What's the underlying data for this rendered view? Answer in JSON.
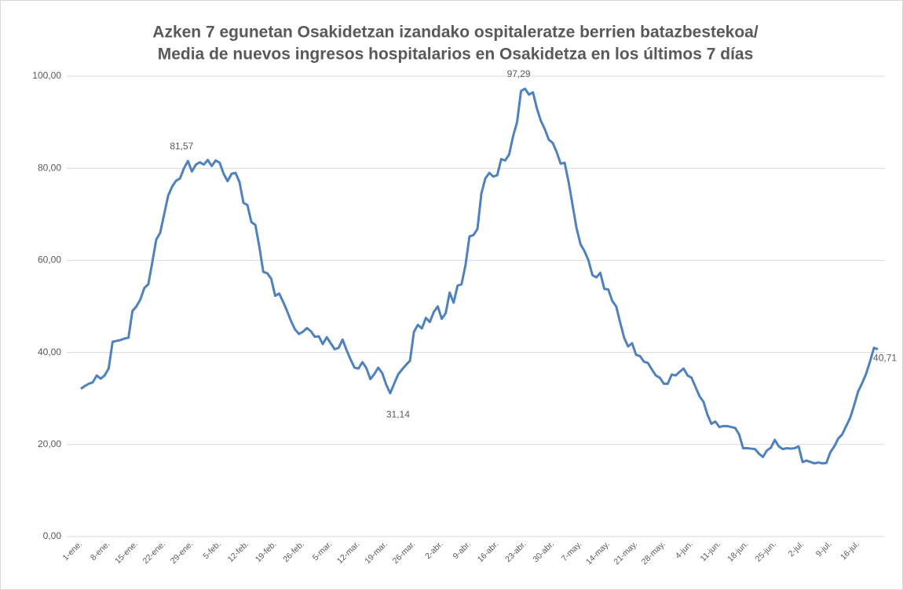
{
  "chart_data": {
    "type": "line",
    "title": [
      "Azken 7 egunetan Osakidetzan izandako ospitaleratze berrien batazbestekoa/",
      "Media de nuevos ingresos hospitalarios en Osakidetza en los últimos 7 días"
    ],
    "categories": [
      "1-ene.",
      null,
      null,
      null,
      null,
      null,
      null,
      "8-ene.",
      null,
      null,
      null,
      null,
      null,
      null,
      "15-ene.",
      null,
      null,
      null,
      null,
      null,
      null,
      "22-ene.",
      null,
      null,
      null,
      null,
      null,
      null,
      "29-ene.",
      null,
      null,
      null,
      null,
      null,
      null,
      "5-feb.",
      null,
      null,
      null,
      null,
      null,
      null,
      "12-feb.",
      null,
      null,
      null,
      null,
      null,
      null,
      "19-feb.",
      null,
      null,
      null,
      null,
      null,
      null,
      "26-feb.",
      null,
      null,
      null,
      null,
      null,
      null,
      "5-mar.",
      null,
      null,
      null,
      null,
      null,
      null,
      "12-mar.",
      null,
      null,
      null,
      null,
      null,
      null,
      "19-mar.",
      null,
      null,
      null,
      null,
      null,
      null,
      "26-mar.",
      null,
      null,
      null,
      null,
      null,
      null,
      "2-abr.",
      null,
      null,
      null,
      null,
      null,
      null,
      "9-abr.",
      null,
      null,
      null,
      null,
      null,
      null,
      "16-abr.",
      null,
      null,
      null,
      null,
      null,
      null,
      "23-abr.",
      null,
      null,
      null,
      null,
      null,
      null,
      "30-abr.",
      null,
      null,
      null,
      null,
      null,
      null,
      "7-may.",
      null,
      null,
      null,
      null,
      null,
      null,
      "14-may.",
      null,
      null,
      null,
      null,
      null,
      null,
      "21-may.",
      null,
      null,
      null,
      null,
      null,
      null,
      "28-may.",
      null,
      null,
      null,
      null,
      null,
      null,
      "4-jun.",
      null,
      null,
      null,
      null,
      null,
      null,
      "11-jun.",
      null,
      null,
      null,
      null,
      null,
      null,
      "18-jun.",
      null,
      null,
      null,
      null,
      null,
      null,
      "25-jun.",
      null,
      null,
      null,
      null,
      null,
      null,
      "2-jul.",
      null,
      null,
      null,
      null,
      null,
      null,
      "9-jul.",
      null,
      null,
      null,
      null,
      null,
      null,
      "16-jul.",
      null,
      null,
      null,
      null,
      null
    ],
    "values": [
      32.1,
      32.7,
      33.2,
      33.5,
      35,
      34.3,
      35,
      36.5,
      42.3,
      42.5,
      42.7,
      43,
      43.2,
      49,
      50,
      51.5,
      54,
      54.8,
      59.5,
      64.5,
      66,
      70,
      74,
      76,
      77.3,
      77.8,
      80,
      81.57,
      79.3,
      80.8,
      81.3,
      80.8,
      81.8,
      80.5,
      81.7,
      81.2,
      78.8,
      77.2,
      78.8,
      79,
      77,
      72.5,
      72,
      68.3,
      67.7,
      63,
      57.5,
      57.2,
      56,
      52.3,
      52.8,
      51,
      49,
      46.8,
      45,
      44,
      44.5,
      45.3,
      44.6,
      43.4,
      43.5,
      41.8,
      43.3,
      42,
      40.7,
      41,
      42.8,
      40.5,
      38.5,
      36.7,
      36.5,
      37.9,
      36.6,
      34.2,
      35.3,
      36.7,
      35.5,
      33,
      31.14,
      33.2,
      35.2,
      36.3,
      37.3,
      38.2,
      44.5,
      46,
      45.2,
      47.5,
      46.6,
      48.8,
      50,
      47.3,
      48.5,
      53,
      50.8,
      54.5,
      54.8,
      59,
      65.2,
      65.5,
      66.8,
      74.5,
      77.8,
      79,
      78.2,
      78.5,
      82,
      81.7,
      83,
      87,
      90,
      96.8,
      97.29,
      96,
      96.5,
      93,
      90.3,
      88.5,
      86.2,
      85.5,
      83.5,
      81,
      81.2,
      77,
      72,
      67,
      63.5,
      62,
      60,
      56.8,
      56.3,
      57.3,
      53.8,
      53.7,
      51.2,
      50,
      46.5,
      43.2,
      41.3,
      42,
      39.5,
      39.2,
      38,
      37.7,
      36.3,
      35,
      34.5,
      33.2,
      33.2,
      35.2,
      35,
      35.8,
      36.5,
      35,
      34.5,
      32.5,
      30.5,
      29.3,
      26.5,
      24.5,
      25,
      23.8,
      24,
      24,
      23.8,
      23.6,
      22.2,
      19.2,
      19.2,
      19.1,
      19,
      18,
      17.3,
      18.7,
      19.3,
      21,
      19.6,
      19,
      19.2,
      19.1,
      19.2,
      19.6,
      16.2,
      16.5,
      16.2,
      15.9,
      16.1,
      15.9,
      16,
      18.3,
      19.6,
      21.3,
      22.2,
      24,
      25.8,
      28.5,
      31.5,
      33.3,
      35.3,
      38,
      41,
      40.71
    ],
    "value_labels": [
      null,
      null,
      null,
      null,
      null,
      null,
      null,
      null,
      null,
      null,
      null,
      null,
      null,
      null,
      null,
      null,
      null,
      null,
      null,
      null,
      null,
      null,
      null,
      null,
      null,
      null,
      null,
      "81,57",
      null,
      null,
      null,
      null,
      null,
      null,
      null,
      null,
      null,
      null,
      null,
      null,
      null,
      null,
      null,
      null,
      null,
      null,
      null,
      null,
      null,
      null,
      null,
      null,
      null,
      null,
      null,
      null,
      null,
      null,
      null,
      null,
      null,
      null,
      null,
      null,
      null,
      null,
      null,
      null,
      null,
      null,
      null,
      null,
      null,
      null,
      null,
      null,
      null,
      null,
      "31,14",
      null,
      null,
      null,
      null,
      null,
      null,
      null,
      null,
      null,
      null,
      null,
      null,
      null,
      null,
      null,
      null,
      null,
      null,
      null,
      null,
      null,
      null,
      null,
      null,
      null,
      null,
      null,
      null,
      null,
      null,
      null,
      null,
      null,
      "97,29",
      null,
      null,
      null,
      null,
      null,
      null,
      null,
      null,
      null,
      null,
      null,
      null,
      null,
      null,
      null,
      null,
      null,
      null,
      null,
      null,
      null,
      null,
      null,
      null,
      null,
      null,
      null,
      null,
      null,
      null,
      null,
      null,
      null,
      null,
      null,
      null,
      null,
      null,
      null,
      null,
      null,
      null,
      null,
      null,
      null,
      null,
      null,
      null,
      null,
      null,
      null,
      null,
      null,
      null,
      null,
      null,
      null,
      null,
      null,
      null,
      null,
      null,
      null,
      null,
      null,
      null,
      null,
      null,
      null,
      null,
      null,
      null,
      null,
      null,
      null,
      null,
      null,
      null,
      null,
      null,
      null,
      null,
      null,
      null,
      null,
      null,
      null,
      null,
      "40,71"
    ],
    "color": "#4f81bd",
    "ylim": [
      0,
      100
    ],
    "yticks": [
      {
        "value": 0,
        "label": "0,00"
      },
      {
        "value": 20,
        "label": "20,00"
      },
      {
        "value": 40,
        "label": "40,00"
      },
      {
        "value": 60,
        "label": "60,00"
      },
      {
        "value": 80,
        "label": "80,00"
      },
      {
        "value": 100,
        "label": "100,00"
      }
    ],
    "grid": true
  }
}
